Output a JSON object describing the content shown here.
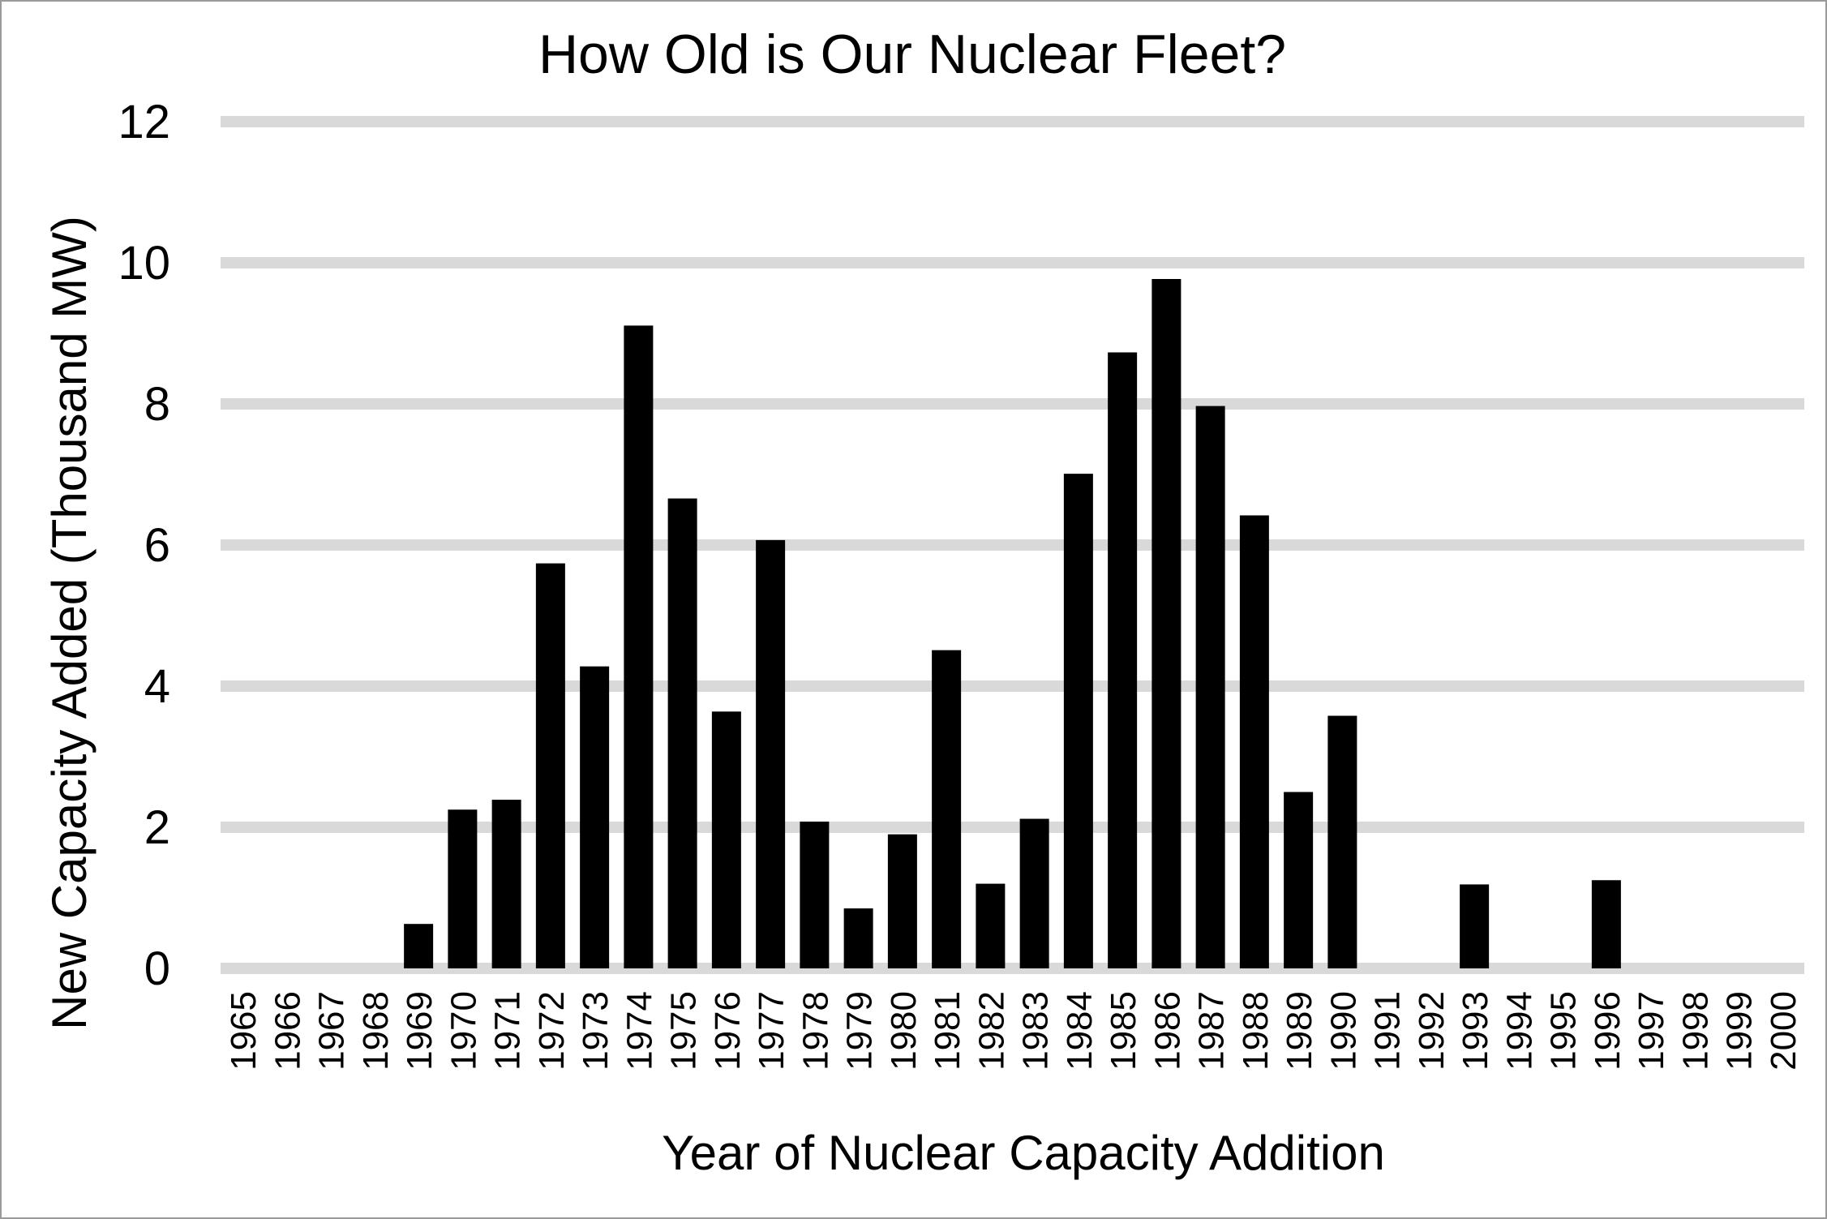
{
  "chart_data": {
    "type": "bar",
    "title": "How Old is Our Nuclear Fleet?",
    "xlabel": "Year of Nuclear Capacity Addition",
    "ylabel": "New Capacity Added (Thousand MW)",
    "ylim": [
      0,
      12
    ],
    "yticks": [
      0,
      2,
      4,
      6,
      8,
      10,
      12
    ],
    "grid": true,
    "legend": "none",
    "bar_color": "#000000",
    "grid_color": "#d9d9d9",
    "categories": [
      "1965",
      "1966",
      "1967",
      "1968",
      "1969",
      "1970",
      "1971",
      "1972",
      "1973",
      "1974",
      "1975",
      "1976",
      "1977",
      "1978",
      "1979",
      "1980",
      "1981",
      "1982",
      "1983",
      "1984",
      "1985",
      "1986",
      "1987",
      "1988",
      "1989",
      "1990",
      "1991",
      "1992",
      "1993",
      "1994",
      "1995",
      "1996",
      "1997",
      "1998",
      "1999",
      "2000"
    ],
    "values": [
      0,
      0,
      0,
      0,
      0.63,
      2.25,
      2.39,
      5.74,
      4.28,
      9.11,
      6.66,
      3.64,
      6.07,
      2.08,
      0.85,
      1.9,
      4.51,
      1.2,
      2.12,
      7.01,
      8.73,
      9.77,
      7.97,
      6.42,
      2.5,
      3.58,
      0,
      0,
      1.19,
      0,
      0,
      1.25,
      0,
      0,
      0,
      0
    ]
  }
}
